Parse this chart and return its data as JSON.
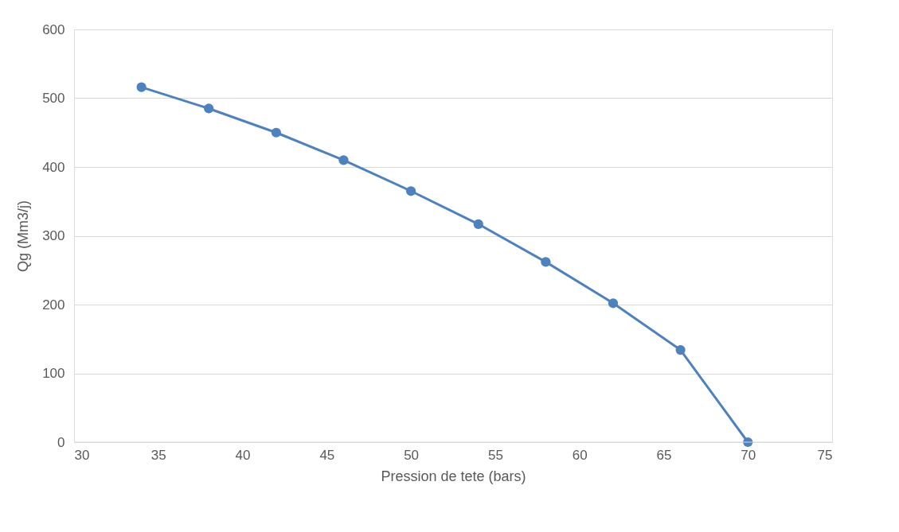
{
  "chart_data": {
    "type": "line",
    "xlabel": "Pression de tete (bars)",
    "ylabel": "Qg (Mm3/j)",
    "x": [
      34,
      38,
      42,
      46,
      50,
      54,
      58,
      62,
      66,
      70
    ],
    "series": [
      {
        "color": "#4f81bd",
        "values": [
          516,
          485,
          450,
          410,
          365,
          317,
          262,
          202,
          134,
          0
        ]
      }
    ],
    "xlim": [
      30,
      75
    ],
    "xticks": [
      30,
      35,
      40,
      45,
      50,
      55,
      60,
      65,
      70,
      75
    ],
    "ylim": [
      0,
      600
    ],
    "yticks": [
      0,
      100,
      200,
      300,
      400,
      500,
      600
    ],
    "grid": "y",
    "marker": "circle"
  }
}
